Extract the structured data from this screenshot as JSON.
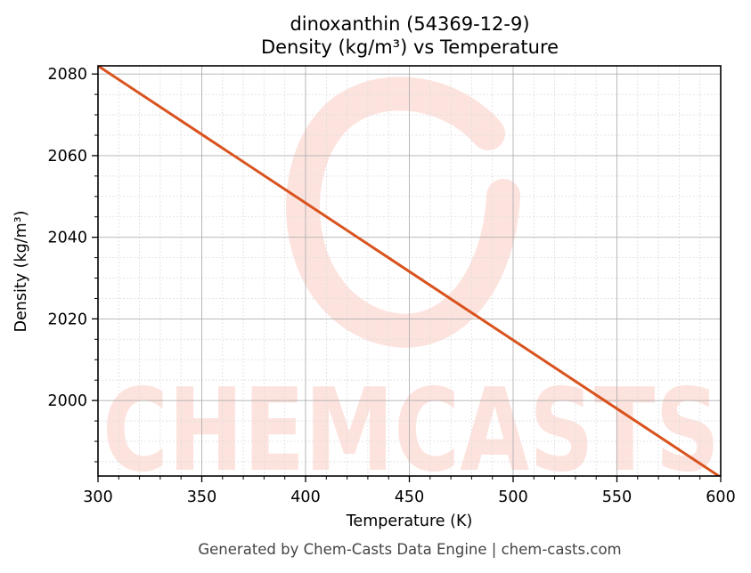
{
  "title": {
    "line1": "dinoxanthin (54369-12-9)",
    "line2": "Density (kg/m³) vs Temperature"
  },
  "axes": {
    "xlabel": "Temperature (K)",
    "ylabel": "Density (kg/m³)"
  },
  "footer": "Generated by Chem-Casts Data Engine | chem-casts.com",
  "watermark": "CHEMCASTS",
  "colors": {
    "line": "#d9531e",
    "watermark": "#fde3de",
    "grid_major": "#b0b0b0",
    "grid_minor": "#dddddd"
  },
  "chart_data": {
    "type": "line",
    "title": "dinoxanthin (54369-12-9)\nDensity (kg/m³) vs Temperature",
    "xlabel": "Temperature (K)",
    "ylabel": "Density (kg/m³)",
    "xlim": [
      300,
      600
    ],
    "ylim": [
      1981.5,
      2082.0
    ],
    "xticks": [
      300,
      350,
      400,
      450,
      500,
      550,
      600
    ],
    "yticks": [
      2000,
      2020,
      2040,
      2060,
      2080
    ],
    "x_minor_step": 10,
    "y_minor_step": 5,
    "grid": true,
    "legend": null,
    "series": [
      {
        "name": "Density",
        "x": [
          300,
          350,
          400,
          450,
          500,
          550,
          600
        ],
        "values": [
          2082.0,
          2065.2,
          2048.4,
          2031.6,
          2014.8,
          1998.0,
          1981.2
        ]
      }
    ]
  }
}
